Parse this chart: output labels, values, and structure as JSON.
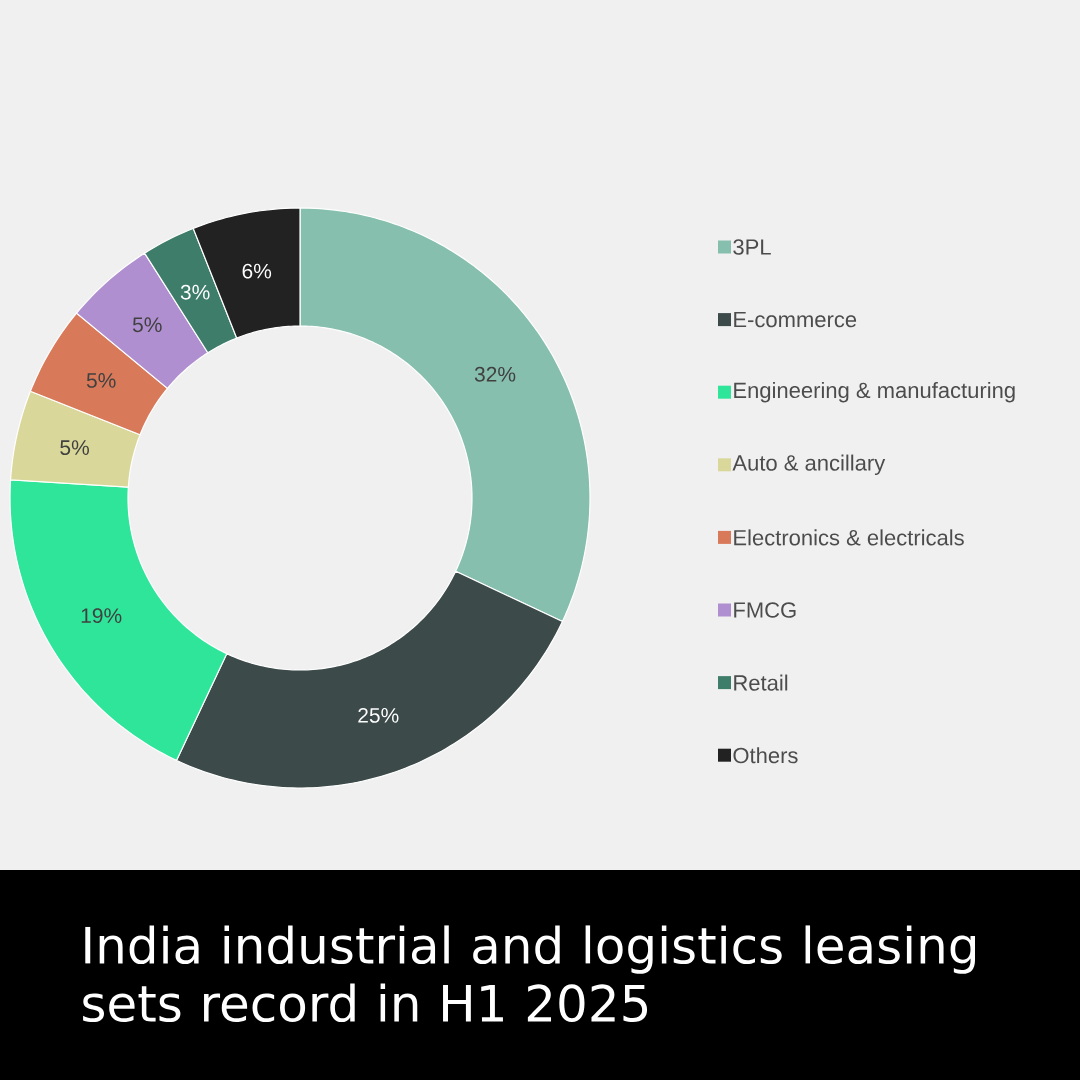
{
  "chart_data": {
    "type": "donut",
    "title": "India industrial and logistics leasing sets record in H1 2025",
    "categories": [
      "3PL",
      "E-commerce",
      "Engineering & manufacturing",
      "Auto & ancillary",
      "Electronics & electricals",
      "FMCG",
      "Retail",
      "Others"
    ],
    "values": [
      32,
      25,
      19,
      5,
      5,
      5,
      3,
      6
    ],
    "colors": [
      "#86bfad",
      "#3d4a4a",
      "#2ee59a",
      "#d9d89a",
      "#d87a5a",
      "#b08fd0",
      "#3f7d6b",
      "#222222"
    ],
    "value_labels": [
      "32%",
      "25%",
      "19%",
      "5%",
      "5%",
      "5%",
      "3%",
      "6%"
    ],
    "legend": "right"
  }
}
